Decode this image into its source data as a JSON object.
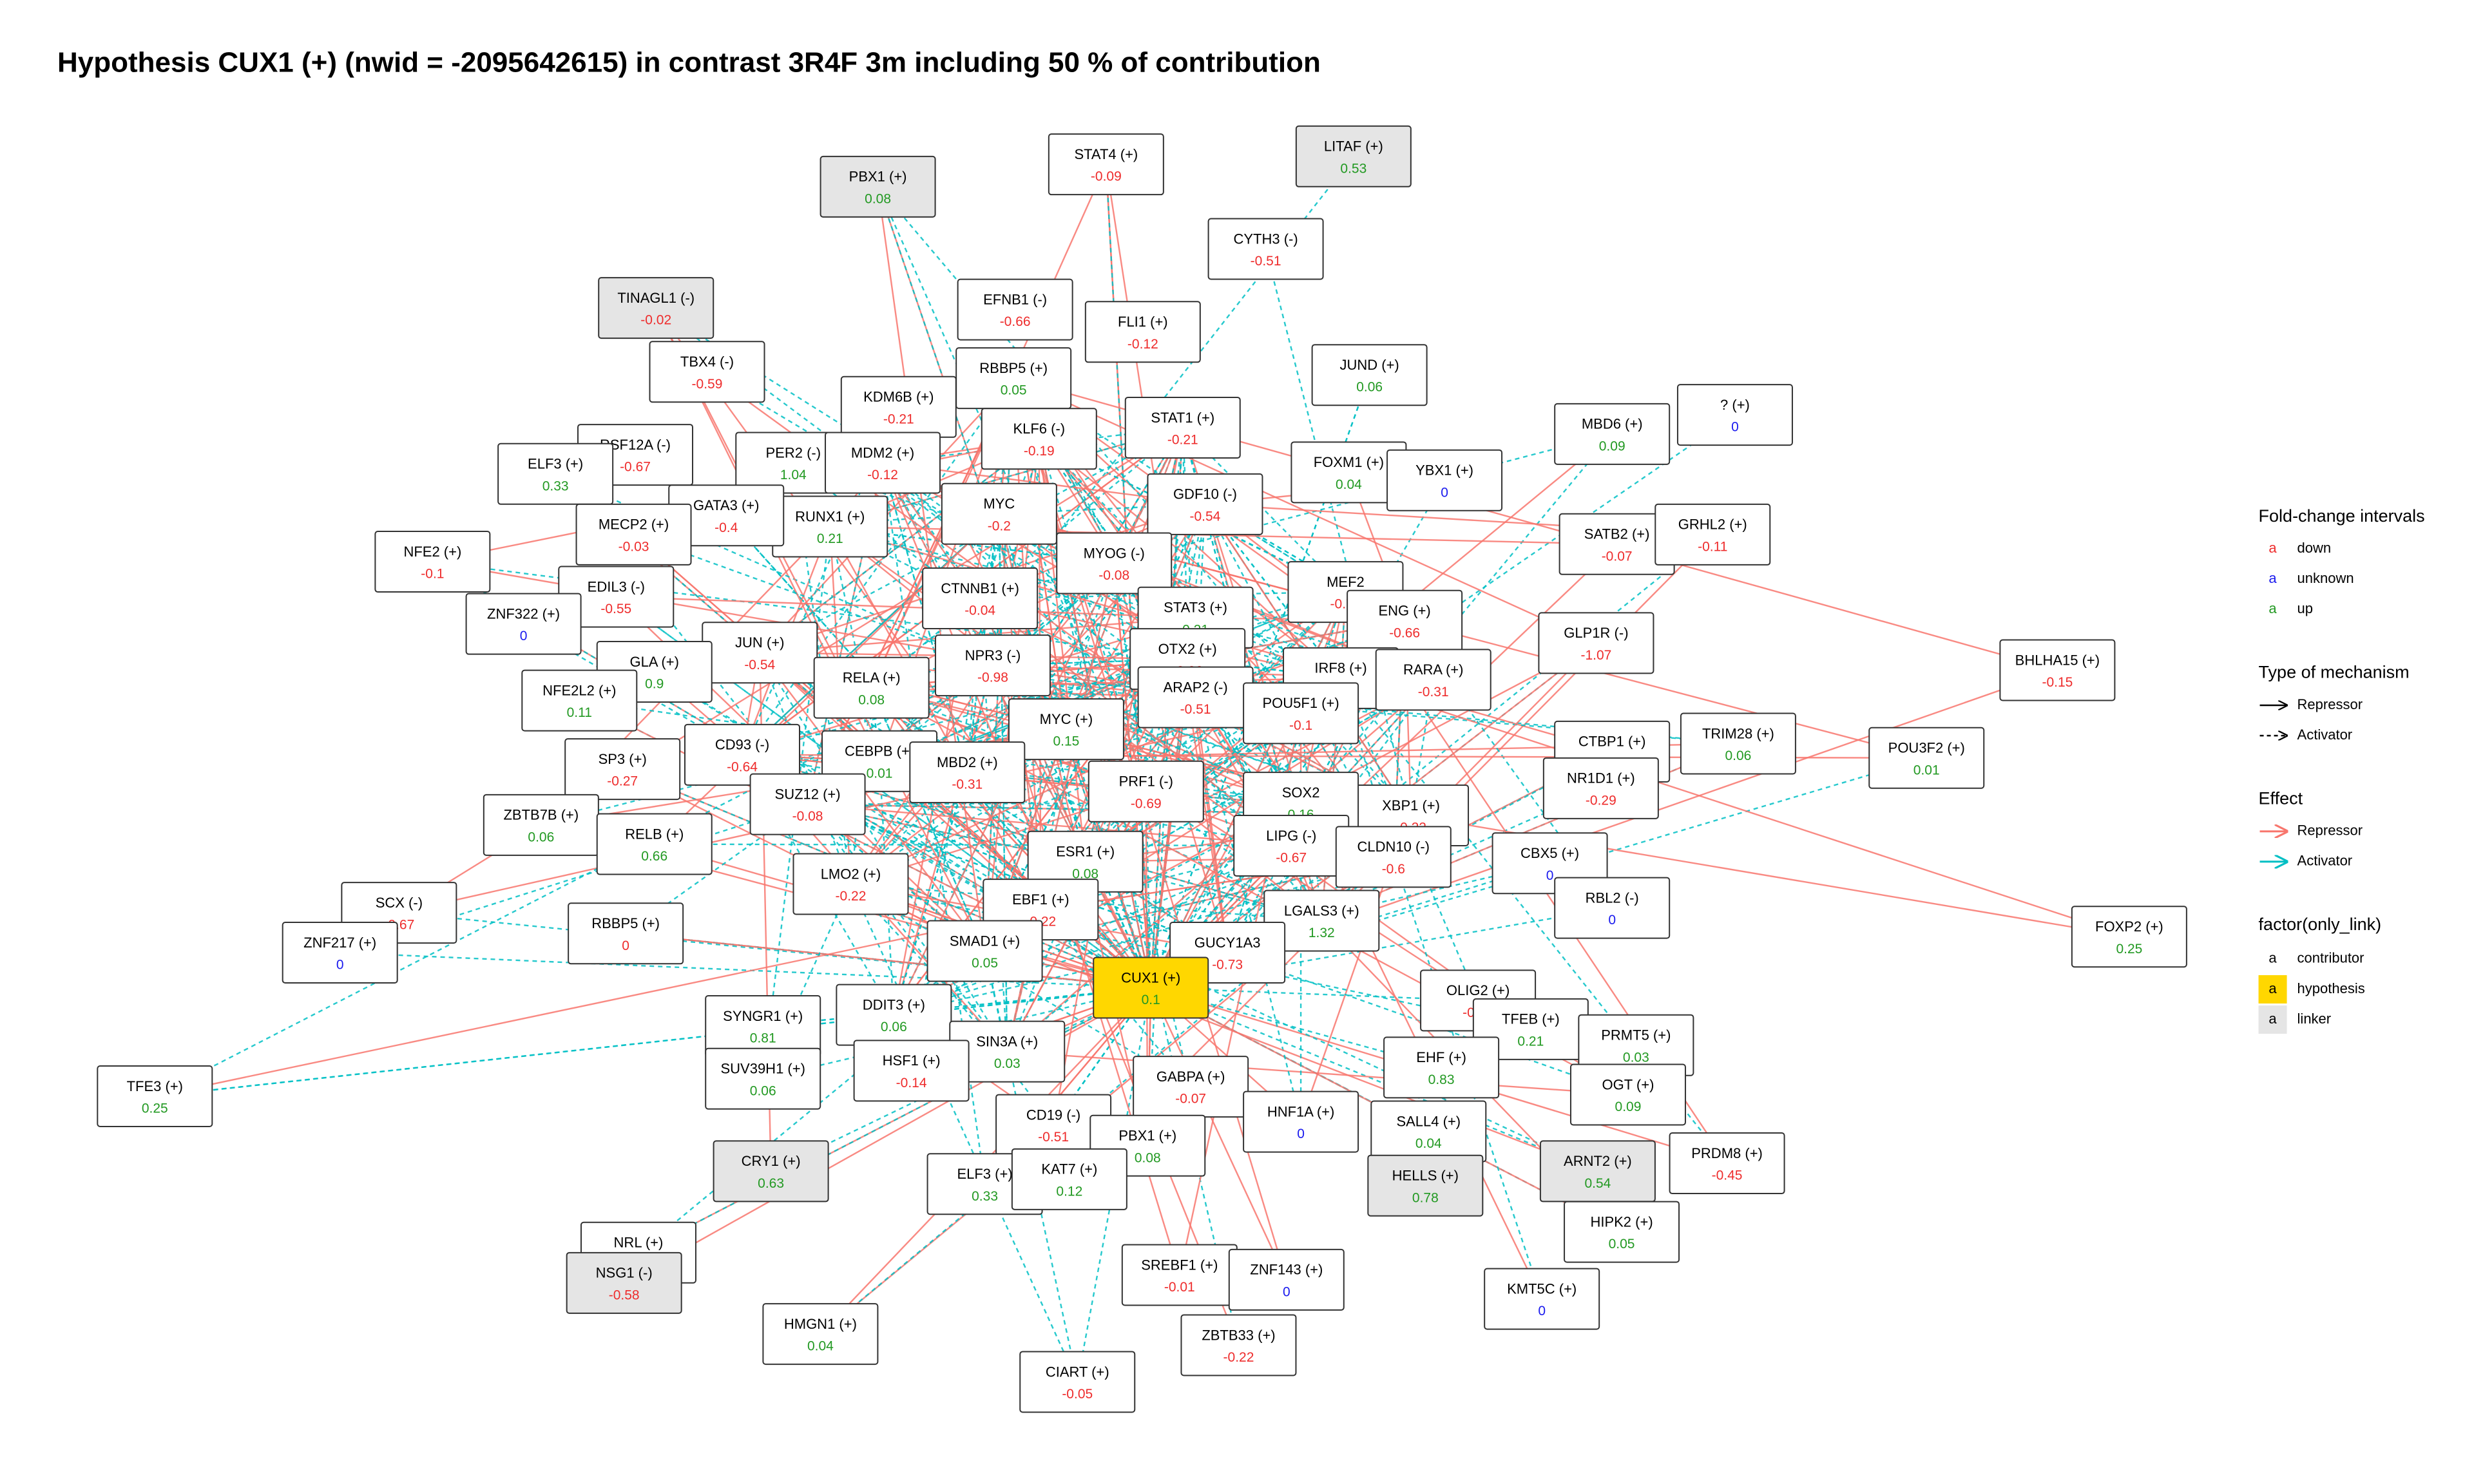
{
  "title": "Hypothesis  CUX1 (+) (nwid = -2095642615)  in contrast 3R4F 3m including  50 % of contribution",
  "nodes": [
    {
      "label": "STAT4 (+)",
      "value": "-0.09",
      "kind": "contributor",
      "interval": "down"
    },
    {
      "label": "LITAF (+)",
      "value": "0.53",
      "kind": "linker",
      "interval": "up"
    },
    {
      "label": "PBX1 (+)",
      "value": "0.08",
      "kind": "linker",
      "interval": "up"
    },
    {
      "label": "CYTH3 (-)",
      "value": "-0.51",
      "kind": "contributor",
      "interval": "down"
    },
    {
      "label": "TINAGL1 (-)",
      "value": "-0.02",
      "kind": "linker",
      "interval": "down"
    },
    {
      "label": "EFNB1 (-)",
      "value": "-0.66",
      "kind": "contributor",
      "interval": "down"
    },
    {
      "label": "FLI1 (+)",
      "value": "-0.12",
      "kind": "contributor",
      "interval": "down"
    },
    {
      "label": "TBX4 (-)",
      "value": "-0.59",
      "kind": "contributor",
      "interval": "down"
    },
    {
      "label": "RBBP5 (+)",
      "value": "0.05",
      "kind": "contributor",
      "interval": "up"
    },
    {
      "label": "KDM6B (+)",
      "value": "-0.21",
      "kind": "contributor",
      "interval": "down"
    },
    {
      "label": "JUND (+)",
      "value": "0.06",
      "kind": "contributor",
      "interval": "up"
    },
    {
      "label": "? (+)",
      "value": "0",
      "kind": "contributor",
      "interval": "unknown"
    },
    {
      "label": "MBD6 (+)",
      "value": "0.09",
      "kind": "contributor",
      "interval": "up"
    },
    {
      "label": "STAT1 (+)",
      "value": "-0.21",
      "kind": "contributor",
      "interval": "down"
    },
    {
      "label": "KLF6 (-)",
      "value": "-0.19",
      "kind": "contributor",
      "interval": "down"
    },
    {
      "label": "RSF12A (-)",
      "value": "-0.67",
      "kind": "contributor",
      "interval": "down"
    },
    {
      "label": "PER2 (-)",
      "value": "1.04",
      "kind": "contributor",
      "interval": "up"
    },
    {
      "label": "MDM2 (+)",
      "value": "-0.12",
      "kind": "contributor",
      "interval": "down"
    },
    {
      "label": "ELF3 (+)",
      "value": "0.33",
      "kind": "contributor",
      "interval": "up"
    },
    {
      "label": "FOXM1 (+)",
      "value": "0.04",
      "kind": "contributor",
      "interval": "up"
    },
    {
      "label": "YBX1 (+)",
      "value": "0",
      "kind": "contributor",
      "interval": "unknown"
    },
    {
      "label": "GDF10 (-)",
      "value": "-0.54",
      "kind": "contributor",
      "interval": "down"
    },
    {
      "label": "RUNX1 (+)",
      "value": "0.21",
      "kind": "contributor",
      "interval": "up"
    },
    {
      "label": "GATA3 (+)",
      "value": "-0.4",
      "kind": "contributor",
      "interval": "down"
    },
    {
      "label": "MECP2 (+)",
      "value": "-0.03",
      "kind": "contributor",
      "interval": "down"
    },
    {
      "label": "SATB2 (+)",
      "value": "-0.07",
      "kind": "contributor",
      "interval": "down"
    },
    {
      "label": "GRHL2 (+)",
      "value": "-0.11",
      "kind": "contributor",
      "interval": "down"
    },
    {
      "label": "NFE2 (+)",
      "value": "-0.1",
      "kind": "contributor",
      "interval": "down"
    },
    {
      "label": "MYC",
      "value": "-0.2",
      "kind": "contributor",
      "interval": "down"
    },
    {
      "label": "MYOG (-)",
      "value": "-0.08",
      "kind": "contributor",
      "interval": "down"
    },
    {
      "label": "MEF2",
      "value": "-0.74",
      "kind": "contributor",
      "interval": "down"
    },
    {
      "label": "EDIL3 (-)",
      "value": "-0.55",
      "kind": "contributor",
      "interval": "down"
    },
    {
      "label": "ZNF322 (+)",
      "value": "0",
      "kind": "contributor",
      "interval": "unknown"
    },
    {
      "label": "CTNNB1 (+)",
      "value": "-0.04",
      "kind": "contributor",
      "interval": "down"
    },
    {
      "label": "STAT3 (+)",
      "value": "0.21",
      "kind": "contributor",
      "interval": "up"
    },
    {
      "label": "ENG (+)",
      "value": "-0.66",
      "kind": "contributor",
      "interval": "down"
    },
    {
      "label": "GLP1R (-)",
      "value": "-1.07",
      "kind": "contributor",
      "interval": "down"
    },
    {
      "label": "JUN (+)",
      "value": "-0.54",
      "kind": "contributor",
      "interval": "down"
    },
    {
      "label": "GLA (+)",
      "value": "0.9",
      "kind": "contributor",
      "interval": "up"
    },
    {
      "label": "NPR3 (-)",
      "value": "-0.98",
      "kind": "contributor",
      "interval": "down"
    },
    {
      "label": "IRF8 (+)",
      "value": "0.1",
      "kind": "contributor",
      "interval": "up"
    },
    {
      "label": "RARA (+)",
      "value": "-0.31",
      "kind": "contributor",
      "interval": "down"
    },
    {
      "label": "RELA (+)",
      "value": "0.08",
      "kind": "contributor",
      "interval": "up"
    },
    {
      "label": "OTX2 (+)",
      "value": "-0.06",
      "kind": "contributor",
      "interval": "down"
    },
    {
      "label": "ARAP2 (-)",
      "value": "-0.51",
      "kind": "contributor",
      "interval": "down"
    },
    {
      "label": "BHLHA15 (+)",
      "value": "-0.15",
      "kind": "contributor",
      "interval": "down"
    },
    {
      "label": "NFE2L2 (+)",
      "value": "0.11",
      "kind": "contributor",
      "interval": "up"
    },
    {
      "label": "POU5F1 (+)",
      "value": "-0.1",
      "kind": "contributor",
      "interval": "down"
    },
    {
      "label": "MYC (+)",
      "value": "0.15",
      "kind": "contributor",
      "interval": "up"
    },
    {
      "label": "CD93 (-)",
      "value": "-0.64",
      "kind": "contributor",
      "interval": "down"
    },
    {
      "label": "TRIM28 (+)",
      "value": "0.06",
      "kind": "contributor",
      "interval": "up"
    },
    {
      "label": "POU3F2 (+)",
      "value": "0.01",
      "kind": "contributor",
      "interval": "up"
    },
    {
      "label": "CTBP1 (+)",
      "value": "-0.12",
      "kind": "contributor",
      "interval": "down"
    },
    {
      "label": "SP3 (+)",
      "value": "-0.27",
      "kind": "contributor",
      "interval": "down"
    },
    {
      "label": "CEBPB (+)",
      "value": "0.01",
      "kind": "contributor",
      "interval": "up"
    },
    {
      "label": "MBD2 (+)",
      "value": "-0.31",
      "kind": "contributor",
      "interval": "down"
    },
    {
      "label": "NR1D1 (+)",
      "value": "-0.29",
      "kind": "contributor",
      "interval": "down"
    },
    {
      "label": "PRF1 (-)",
      "value": "-0.69",
      "kind": "contributor",
      "interval": "down"
    },
    {
      "label": "SUZ12 (+)",
      "value": "-0.08",
      "kind": "contributor",
      "interval": "down"
    },
    {
      "label": "XBP1 (+)",
      "value": "-0.22",
      "kind": "contributor",
      "interval": "down"
    },
    {
      "label": "SOX2",
      "value": "0.16",
      "kind": "contributor",
      "interval": "up"
    },
    {
      "label": "ZBTB7B (+)",
      "value": "0.06",
      "kind": "contributor",
      "interval": "up"
    },
    {
      "label": "LIPG (-)",
      "value": "-0.67",
      "kind": "contributor",
      "interval": "down"
    },
    {
      "label": "CLDN10 (-)",
      "value": "-0.6",
      "kind": "contributor",
      "interval": "down"
    },
    {
      "label": "RELB (+)",
      "value": "0.66",
      "kind": "contributor",
      "interval": "up"
    },
    {
      "label": "CBX5 (+)",
      "value": "0",
      "kind": "contributor",
      "interval": "unknown"
    },
    {
      "label": "ESR1 (+)",
      "value": "0.08",
      "kind": "contributor",
      "interval": "up"
    },
    {
      "label": "LMO2 (+)",
      "value": "-0.22",
      "kind": "contributor",
      "interval": "down"
    },
    {
      "label": "SCX (-)",
      "value": "-0.67",
      "kind": "contributor",
      "interval": "down"
    },
    {
      "label": "RBL2 (-)",
      "value": "0",
      "kind": "contributor",
      "interval": "unknown"
    },
    {
      "label": "EBF1 (+)",
      "value": "-0.22",
      "kind": "contributor",
      "interval": "down"
    },
    {
      "label": "LGALS3 (+)",
      "value": "1.32",
      "kind": "contributor",
      "interval": "up"
    },
    {
      "label": "ZNF217 (+)",
      "value": "0",
      "kind": "contributor",
      "interval": "unknown"
    },
    {
      "label": "FOXP2 (+)",
      "value": "0.25",
      "kind": "contributor",
      "interval": "up"
    },
    {
      "label": "RBBP5 (+)",
      "value": "0",
      "kind": "contributor",
      "interval": "down"
    },
    {
      "label": "SMAD1 (+)",
      "value": "0.05",
      "kind": "contributor",
      "interval": "up"
    },
    {
      "label": "GUCY1A3",
      "value": "-0.73",
      "kind": "contributor",
      "interval": "down"
    },
    {
      "label": "CUX1 (+)",
      "value": "0.1",
      "kind": "hypothesis",
      "interval": "up"
    },
    {
      "label": "OLIG2 (+)",
      "value": "-0.06",
      "kind": "contributor",
      "interval": "down"
    },
    {
      "label": "SYNGR1 (+)",
      "value": "0.81",
      "kind": "contributor",
      "interval": "up"
    },
    {
      "label": "DDIT3 (+)",
      "value": "0.06",
      "kind": "contributor",
      "interval": "up"
    },
    {
      "label": "TFEB (+)",
      "value": "0.21",
      "kind": "contributor",
      "interval": "up"
    },
    {
      "label": "PRMT5 (+)",
      "value": "0.03",
      "kind": "contributor",
      "interval": "up"
    },
    {
      "label": "SIN3A (+)",
      "value": "0.03",
      "kind": "contributor",
      "interval": "up"
    },
    {
      "label": "EHF (+)",
      "value": "0.83",
      "kind": "contributor",
      "interval": "up"
    },
    {
      "label": "TFE3 (+)",
      "value": "0.25",
      "kind": "contributor",
      "interval": "up"
    },
    {
      "label": "SUV39H1 (+)",
      "value": "0.06",
      "kind": "contributor",
      "interval": "up"
    },
    {
      "label": "HSF1 (+)",
      "value": "-0.14",
      "kind": "contributor",
      "interval": "down"
    },
    {
      "label": "GABPA (+)",
      "value": "-0.07",
      "kind": "contributor",
      "interval": "down"
    },
    {
      "label": "OGT (+)",
      "value": "0.09",
      "kind": "contributor",
      "interval": "up"
    },
    {
      "label": "CD19 (-)",
      "value": "-0.51",
      "kind": "contributor",
      "interval": "down"
    },
    {
      "label": "HNF1A (+)",
      "value": "0",
      "kind": "contributor",
      "interval": "unknown"
    },
    {
      "label": "SALL4 (+)",
      "value": "0.04",
      "kind": "contributor",
      "interval": "up"
    },
    {
      "label": "PBX1 (+)",
      "value": "0.08",
      "kind": "contributor",
      "interval": "up"
    },
    {
      "label": "PRDM8 (+)",
      "value": "-0.45",
      "kind": "contributor",
      "interval": "down"
    },
    {
      "label": "CRY1 (+)",
      "value": "0.63",
      "kind": "linker",
      "interval": "up"
    },
    {
      "label": "ELF3 (+)",
      "value": "0.33",
      "kind": "contributor",
      "interval": "up"
    },
    {
      "label": "KAT7 (+)",
      "value": "0.12",
      "kind": "contributor",
      "interval": "up"
    },
    {
      "label": "HELLS (+)",
      "value": "0.78",
      "kind": "linker",
      "interval": "up"
    },
    {
      "label": "ARNT2 (+)",
      "value": "0.54",
      "kind": "linker",
      "interval": "up"
    },
    {
      "label": "HIPK2 (+)",
      "value": "0.05",
      "kind": "contributor",
      "interval": "up"
    },
    {
      "label": "NRL (+)",
      "value": "0.03",
      "kind": "contributor",
      "interval": "up"
    },
    {
      "label": "NSG1 (-)",
      "value": "-0.58",
      "kind": "linker",
      "interval": "down"
    },
    {
      "label": "SREBF1 (+)",
      "value": "-0.01",
      "kind": "contributor",
      "interval": "down"
    },
    {
      "label": "ZNF143 (+)",
      "value": "0",
      "kind": "contributor",
      "interval": "unknown"
    },
    {
      "label": "KMT5C (+)",
      "value": "0",
      "kind": "contributor",
      "interval": "unknown"
    },
    {
      "label": "HMGN1 (+)",
      "value": "0.04",
      "kind": "contributor",
      "interval": "up"
    },
    {
      "label": "ZBTB33 (+)",
      "value": "-0.22",
      "kind": "contributor",
      "interval": "down"
    },
    {
      "label": "CIART (+)",
      "value": "-0.05",
      "kind": "contributor",
      "interval": "down"
    }
  ],
  "legend": {
    "key_glyph": "a",
    "fold_change": {
      "title": "Fold-change intervals",
      "items": [
        {
          "name": "down",
          "color": "#ee2c2c"
        },
        {
          "name": "unknown",
          "color": "#1a1aee"
        },
        {
          "name": "up",
          "color": "#229922"
        }
      ]
    },
    "mechanism": {
      "title": "Type of mechanism",
      "items": [
        {
          "name": "Repressor",
          "style": "solid"
        },
        {
          "name": "Activator",
          "style": "dashed"
        }
      ]
    },
    "effect": {
      "title": "Effect",
      "items": [
        {
          "name": "Repressor",
          "color": "#F8766D"
        },
        {
          "name": "Activator",
          "color": "#00BFC4"
        }
      ]
    },
    "factor": {
      "title": "factor(only_link)",
      "items": [
        {
          "name": "contributor",
          "fill": "#ffffff"
        },
        {
          "name": "hypothesis",
          "fill": "#FFD700"
        },
        {
          "name": "linker",
          "fill": "#e5e5e5"
        }
      ]
    }
  }
}
